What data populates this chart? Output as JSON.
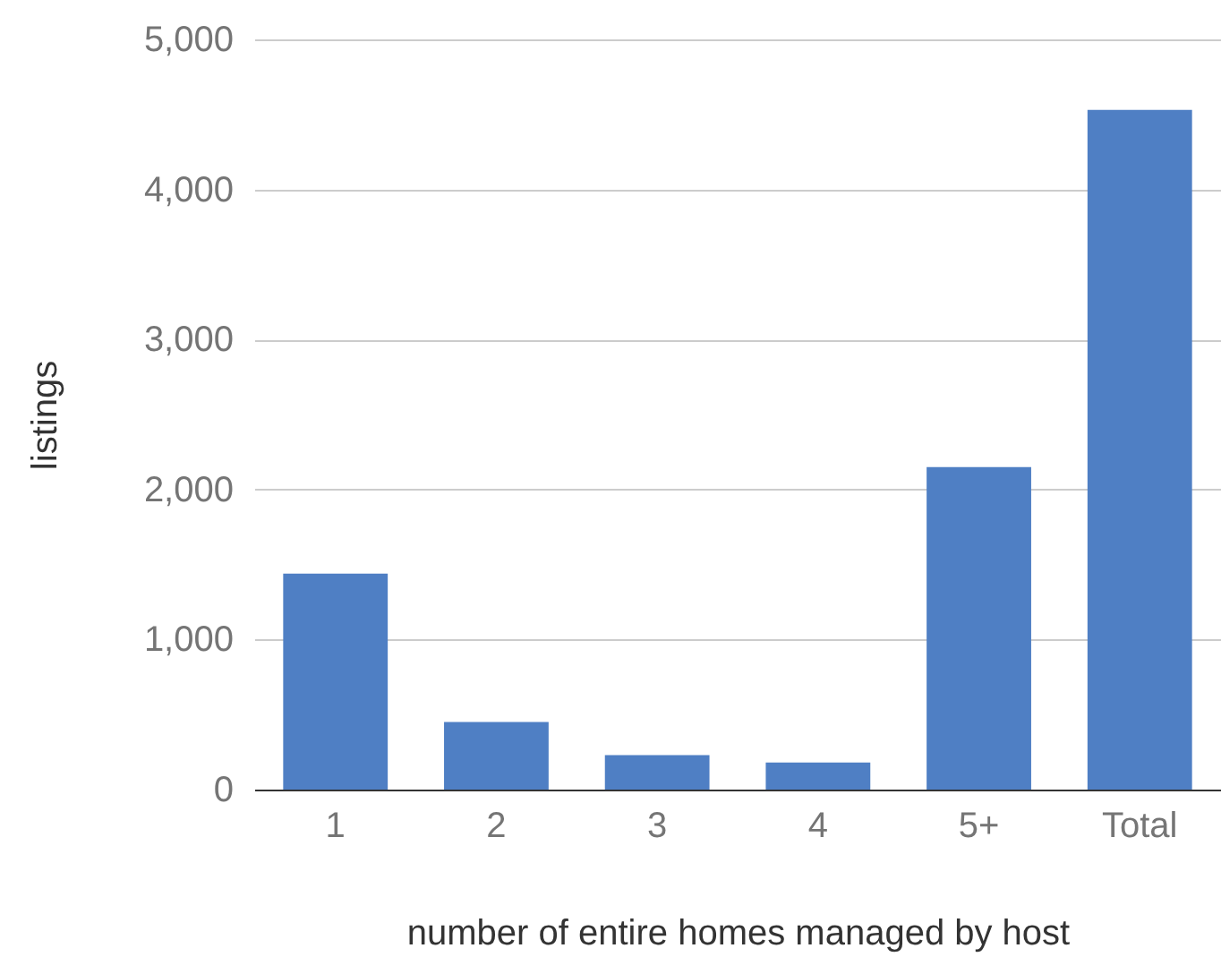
{
  "chart_data": {
    "type": "bar",
    "xlabel": "number of entire homes managed by host",
    "ylabel": "listings",
    "categories": [
      "1",
      "2",
      "3",
      "4",
      "5+",
      "Total"
    ],
    "values": [
      1440,
      450,
      230,
      180,
      2150,
      4530
    ],
    "color": "#4f7fc4",
    "ylim": [
      0,
      5000
    ],
    "yticks": [
      {
        "value": 0,
        "label": "0"
      },
      {
        "value": 1000,
        "label": "1,000"
      },
      {
        "value": 2000,
        "label": "2,000"
      },
      {
        "value": 3000,
        "label": "3,000"
      },
      {
        "value": 4000,
        "label": "4,000"
      },
      {
        "value": 5000,
        "label": "5,000"
      }
    ],
    "grid": "y"
  }
}
